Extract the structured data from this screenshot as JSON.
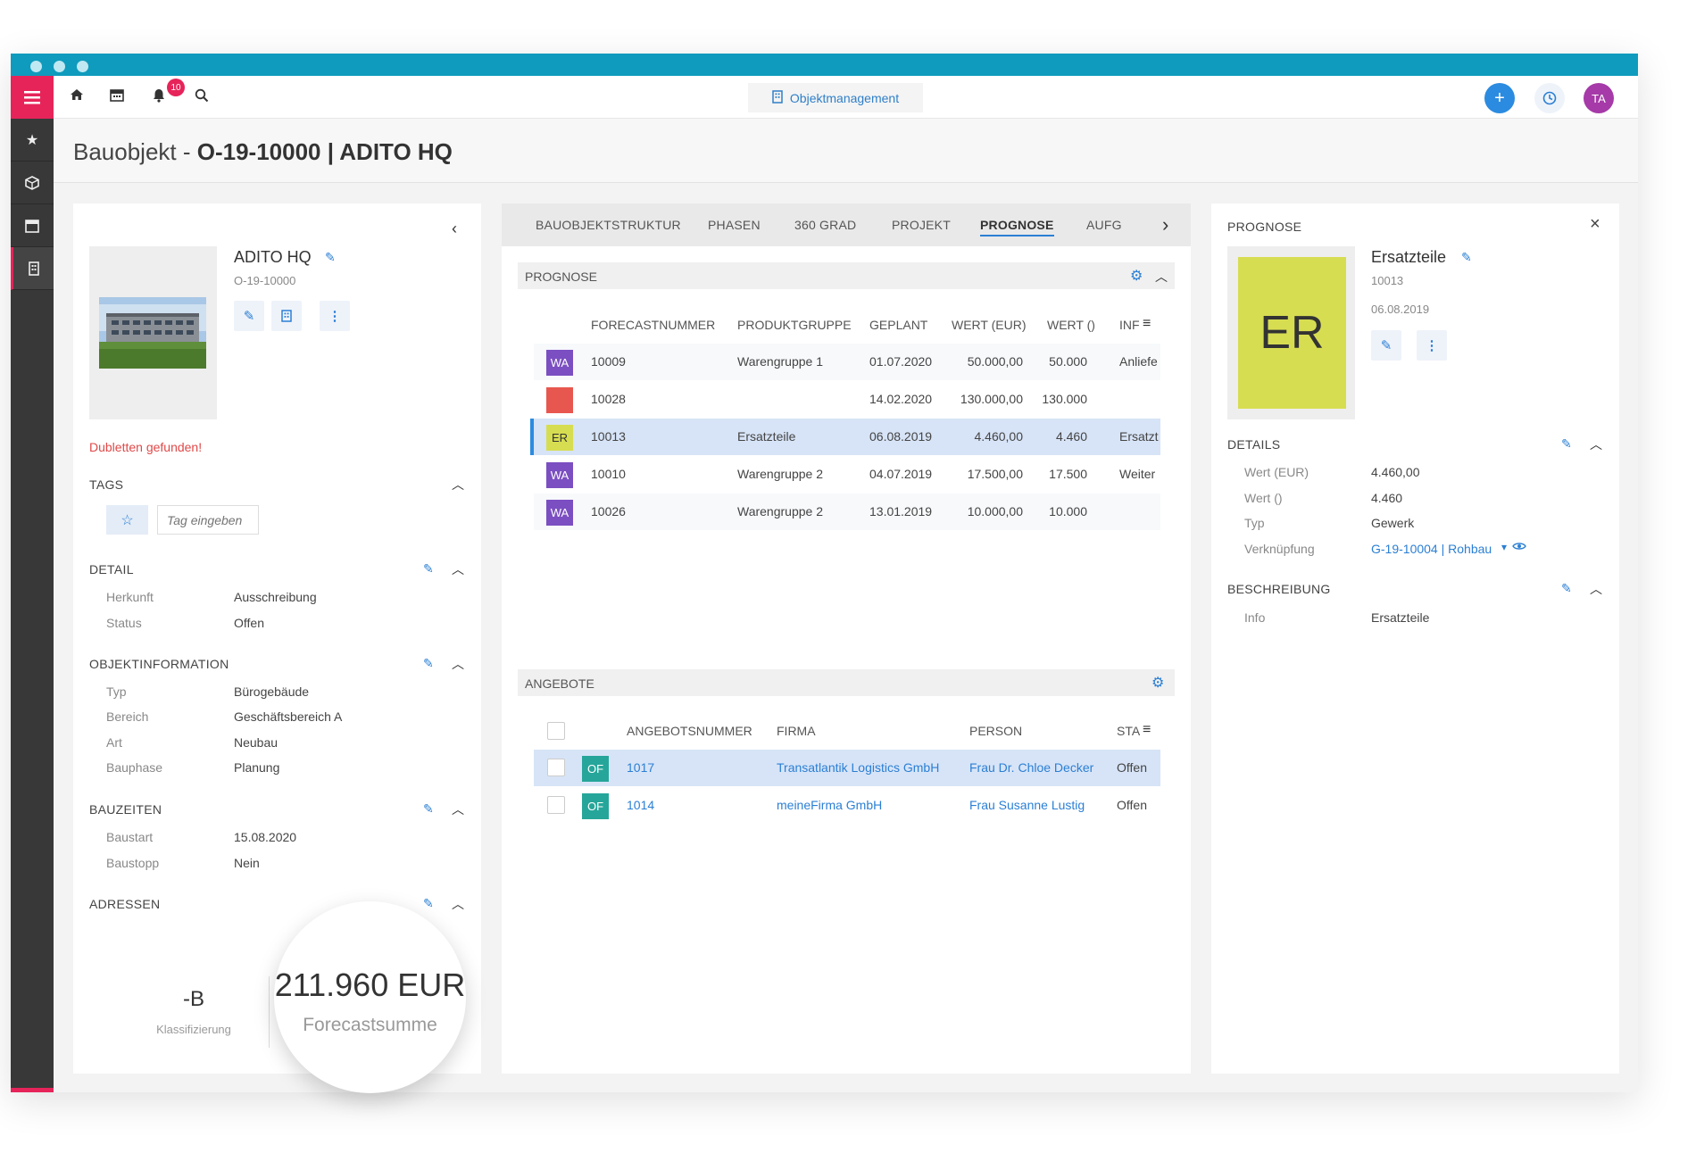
{
  "app": {
    "notifications_count": "10",
    "module_label": "Objektmanagement",
    "avatar_initials": "TA"
  },
  "page": {
    "title_prefix": "Bauobjekt - ",
    "title_main": "O-19-10000 | ADITO HQ"
  },
  "left": {
    "name": "ADITO HQ",
    "number": "O-19-10000",
    "duplicates_warning": "Dubletten gefunden!",
    "tags": {
      "title": "TAGS",
      "input_placeholder": "Tag eingeben"
    },
    "detail": {
      "title": "DETAIL",
      "rows": [
        {
          "label": "Herkunft",
          "value": "Ausschreibung"
        },
        {
          "label": "Status",
          "value": "Offen"
        }
      ]
    },
    "objektinformation": {
      "title": "OBJEKTINFORMATION",
      "rows": [
        {
          "label": "Typ",
          "value": "Bürogebäude"
        },
        {
          "label": "Bereich",
          "value": "Geschäftsbereich A"
        },
        {
          "label": "Art",
          "value": "Neubau"
        },
        {
          "label": "Bauphase",
          "value": "Planung"
        }
      ]
    },
    "bauzeiten": {
      "title": "BAUZEITEN",
      "rows": [
        {
          "label": "Baustart",
          "value": "15.08.2020"
        },
        {
          "label": "Baustopp",
          "value": "Nein"
        }
      ]
    },
    "adressen": {
      "title": "ADRESSEN"
    },
    "kpi": {
      "klass_value": "-B",
      "klass_label": "Klassifizierung",
      "forecast_value": "211.960 EUR",
      "forecast_label": "Forecastsumme"
    }
  },
  "middle": {
    "tabs": [
      "BAUOBJEKTSTRUKTUR",
      "PHASEN",
      "360 GRAD",
      "PROJEKT",
      "PROGNOSE",
      "AUFG"
    ],
    "active_tab": "PROGNOSE",
    "prognose": {
      "title": "PROGNOSE",
      "columns": [
        "FORECASTNUMMER",
        "PRODUKTGRUPPE",
        "GEPLANT",
        "WERT (EUR)",
        "WERT ()",
        "INF"
      ],
      "rows": [
        {
          "badge": "WA",
          "badge_color": "#7b4fc1",
          "nummer": "10009",
          "gruppe": "Warengruppe 1",
          "geplant": "01.07.2020",
          "wert_eur": "50.000,00",
          "wert": "50.000",
          "info": "Anliefe"
        },
        {
          "badge": "",
          "badge_color": "#e8574f",
          "nummer": "10028",
          "gruppe": "",
          "geplant": "14.02.2020",
          "wert_eur": "130.000,00",
          "wert": "130.000",
          "info": ""
        },
        {
          "badge": "ER",
          "badge_color": "#d7dd51",
          "nummer": "10013",
          "gruppe": "Ersatzteile",
          "geplant": "06.08.2019",
          "wert_eur": "4.460,00",
          "wert": "4.460",
          "info": "Ersatzt"
        },
        {
          "badge": "WA",
          "badge_color": "#7b4fc1",
          "nummer": "10010",
          "gruppe": "Warengruppe 2",
          "geplant": "04.07.2019",
          "wert_eur": "17.500,00",
          "wert": "17.500",
          "info": "Weiter"
        },
        {
          "badge": "WA",
          "badge_color": "#7b4fc1",
          "nummer": "10026",
          "gruppe": "Warengruppe 2",
          "geplant": "13.01.2019",
          "wert_eur": "10.000,00",
          "wert": "10.000",
          "info": ""
        }
      ]
    },
    "angebote": {
      "title": "ANGEBOTE",
      "columns": [
        "ANGEBOTSNUMMER",
        "FIRMA",
        "PERSON",
        "STA"
      ],
      "rows": [
        {
          "badge": "OF",
          "nummer": "1017",
          "firma": "Transatlantik Logistics GmbH",
          "person": "Frau Dr. Chloe Decker",
          "status": "Offen"
        },
        {
          "badge": "OF",
          "nummer": "1014",
          "firma": "meineFirma GmbH",
          "person": "Frau Susanne Lustig",
          "status": "Offen"
        }
      ]
    }
  },
  "right": {
    "title": "PROGNOSE",
    "initials": "ER",
    "name": "Ersatzteile",
    "number": "10013",
    "date": "06.08.2019",
    "details": {
      "title": "DETAILS",
      "rows": [
        {
          "label": "Wert (EUR)",
          "value": "4.460,00"
        },
        {
          "label": "Wert ()",
          "value": "4.460"
        },
        {
          "label": "Typ",
          "value": "Gewerk"
        },
        {
          "label": "Verknüpfung",
          "value": "G-19-10004 | Rohbau"
        }
      ]
    },
    "beschreibung": {
      "title": "BESCHREIBUNG",
      "rows": [
        {
          "label": "Info",
          "value": "Ersatzteile"
        }
      ]
    }
  },
  "colors": {
    "accent": "#e6245a",
    "titlebar": "#0f9bbd",
    "link": "#2b7fd4",
    "purple_badge": "#7b4fc1",
    "teal_badge": "#26a69a",
    "lime_badge": "#d7dd51"
  }
}
